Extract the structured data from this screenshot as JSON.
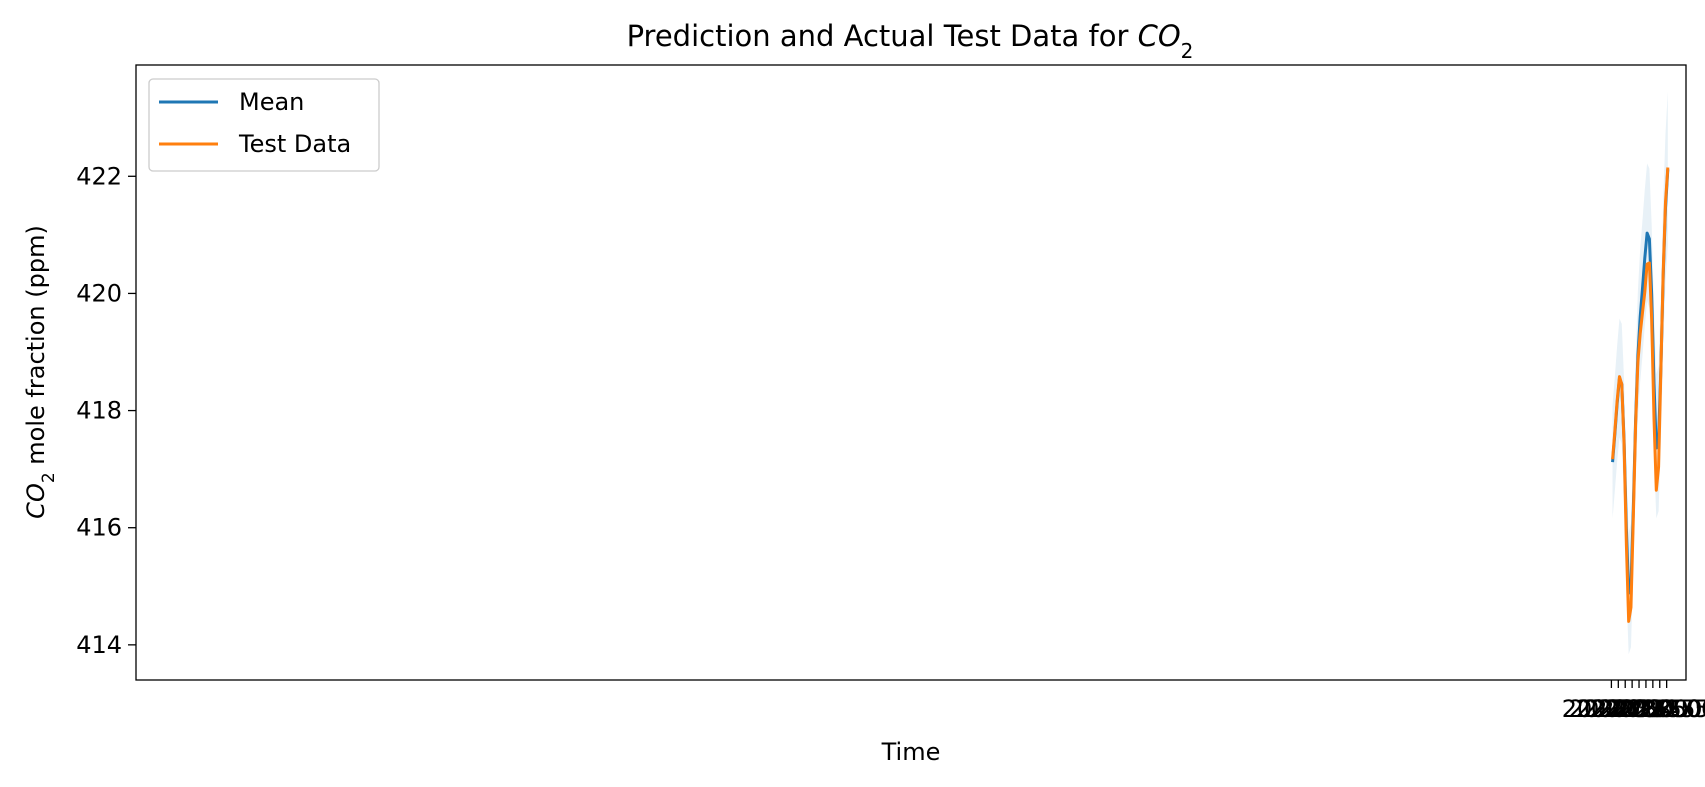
{
  "chart_data": {
    "type": "line",
    "title": "Prediction and Actual Test Data for ",
    "title_math": "CO",
    "title_math_sub": "2",
    "xlabel": "Time",
    "ylabel_math": "CO",
    "ylabel_math_sub": "2",
    "ylabel_rest": " mole fraction (ppm)",
    "xlim": [
      1.9686,
      2.0247
    ],
    "ylim": [
      413.4,
      423.9
    ],
    "x_ticks": [
      2022.0,
      2022.25,
      2022.5,
      2022.75,
      2023.0,
      2023.25,
      2023.5,
      2023.75,
      2024.0
    ],
    "x_tick_labels": [
      "2022.00",
      "2022.25",
      "2022.50",
      "2022.75",
      "2023.00",
      "2023.25",
      "2023.50",
      "2023.75",
      "2024.00"
    ],
    "y_ticks": [
      414,
      416,
      418,
      420,
      422
    ],
    "y_tick_labels": [
      "414",
      "416",
      "418",
      "420",
      "422"
    ],
    "x": [
      2022.042,
      2022.125,
      2022.208,
      2022.292,
      2022.375,
      2022.458,
      2022.542,
      2022.625,
      2022.708,
      2022.792,
      2022.875,
      2022.958,
      2023.042,
      2023.125,
      2023.208,
      2023.292,
      2023.375,
      2023.458,
      2023.542,
      2023.625,
      2023.708,
      2023.792,
      2023.875,
      2023.958,
      2024.042
    ],
    "series": [
      {
        "name": "Mean",
        "color": "#1f77b4",
        "values": [
          417.12,
          417.6,
          418.12,
          418.55,
          418.45,
          417.5,
          415.98,
          414.88,
          415.0,
          416.3,
          417.82,
          418.93,
          419.6,
          420.08,
          420.6,
          421.03,
          420.93,
          419.98,
          418.46,
          417.36,
          417.5,
          418.75,
          420.3,
          421.46,
          422.12
        ]
      },
      {
        "name": "Test Data",
        "color": "#ff7f0e",
        "values": [
          417.17,
          417.65,
          418.17,
          418.58,
          418.45,
          417.43,
          415.71,
          414.4,
          414.64,
          416.15,
          417.75,
          418.82,
          419.31,
          419.67,
          420.02,
          420.5,
          420.52,
          419.55,
          417.86,
          416.64,
          417.04,
          418.72,
          420.37,
          421.56,
          422.15
        ]
      }
    ],
    "band": {
      "color": "#1f77b4",
      "opacity": 0.1,
      "upper": [
        418.09,
        418.58,
        419.11,
        419.57,
        419.48,
        418.52,
        416.97,
        415.92,
        416.07,
        417.32,
        418.83,
        420.04,
        420.76,
        421.25,
        421.77,
        422.22,
        422.13,
        421.17,
        419.7,
        418.62,
        418.76,
        420.0,
        421.6,
        422.73,
        423.45
      ],
      "lower": [
        416.16,
        416.63,
        417.13,
        417.54,
        417.43,
        416.49,
        414.92,
        413.84,
        413.96,
        415.23,
        416.74,
        417.83,
        418.49,
        418.94,
        419.44,
        419.87,
        419.75,
        418.8,
        417.23,
        416.16,
        416.28,
        417.51,
        419.07,
        420.18,
        420.82
      ]
    },
    "legend_placement": "top-left",
    "grid": false
  }
}
